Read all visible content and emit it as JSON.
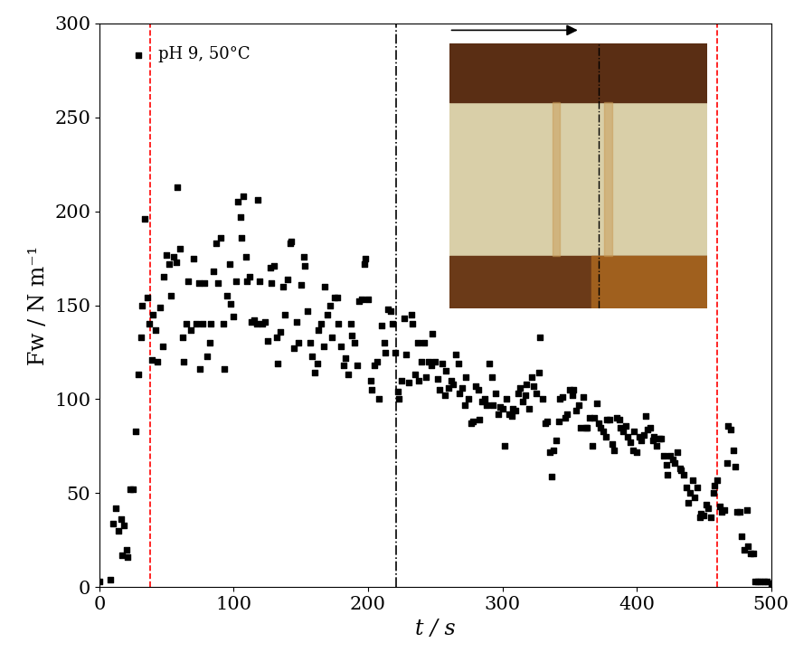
{
  "chart_data": {
    "type": "scatter",
    "x_label": "t / s",
    "y_label": "Fw / N m⁻¹",
    "xlim": [
      0,
      500
    ],
    "xticks": [
      0,
      100,
      200,
      300,
      400,
      500
    ],
    "ylim": [
      0,
      300
    ],
    "yticks": [
      0,
      50,
      100,
      150,
      200,
      250,
      300
    ],
    "legend": "upper left",
    "vlines": [
      {
        "x": 38,
        "color": "#ff0000",
        "line_style": "dashed"
      },
      {
        "x": 221,
        "color": "#000000",
        "line_style": "dashdot"
      },
      {
        "x": 460,
        "color": "#ff0000",
        "line_style": "dashed"
      }
    ],
    "series": [
      {
        "name": "pH 9, 50°C",
        "color": "#000000",
        "marker": "square",
        "x": [
          0,
          8,
          10,
          12,
          14,
          16,
          17,
          18,
          20,
          21,
          23,
          25,
          27,
          29,
          31,
          32,
          34,
          36,
          37,
          39,
          40,
          42,
          43,
          45,
          47,
          48,
          50,
          52,
          53,
          55,
          57,
          58,
          60,
          62,
          63,
          65,
          66,
          68,
          70,
          72,
          74,
          75,
          77,
          78,
          80,
          82,
          83,
          85,
          87,
          88,
          90,
          92,
          93,
          95,
          97,
          98,
          100,
          102,
          103,
          105,
          106,
          107,
          109,
          110,
          112,
          113,
          115,
          117,
          118,
          119,
          121,
          123,
          125,
          127,
          128,
          130,
          132,
          133,
          135,
          137,
          138,
          140,
          142,
          143,
          145,
          147,
          148,
          150,
          152,
          153,
          155,
          157,
          158,
          160,
          162,
          163,
          165,
          167,
          168,
          170,
          172,
          173,
          175,
          177,
          178,
          180,
          182,
          183,
          185,
          187,
          188,
          190,
          192,
          193,
          195,
          197,
          198,
          200,
          202,
          203,
          205,
          207,
          208,
          210,
          212,
          213,
          215,
          217,
          218,
          220,
          222,
          223,
          225,
          227,
          228,
          230,
          232,
          233,
          235,
          237,
          238,
          240,
          242,
          243,
          245,
          247,
          248,
          250,
          252,
          253,
          255,
          257,
          258,
          260,
          262,
          263,
          265,
          267,
          268,
          270,
          272,
          273,
          275,
          277,
          278,
          280,
          282,
          283,
          285,
          287,
          288,
          290,
          292,
          293,
          295,
          297,
          298,
          300,
          302,
          303,
          305,
          307,
          308,
          310,
          312,
          313,
          315,
          317,
          318,
          320,
          322,
          323,
          325,
          327,
          328,
          330,
          332,
          333,
          335,
          337,
          338,
          340,
          342,
          343,
          345,
          347,
          348,
          350,
          352,
          353,
          355,
          357,
          358,
          360,
          362,
          363,
          365,
          367,
          368,
          370,
          372,
          373,
          375,
          377,
          378,
          380,
          382,
          383,
          385,
          387,
          388,
          390,
          392,
          393,
          395,
          397,
          398,
          400,
          402,
          403,
          405,
          407,
          408,
          410,
          412,
          413,
          415,
          417,
          418,
          420,
          422,
          423,
          425,
          427,
          428,
          430,
          432,
          433,
          435,
          437,
          438,
          440,
          442,
          443,
          445,
          447,
          448,
          450,
          452,
          453,
          455,
          457,
          458,
          460,
          462,
          463,
          465,
          467,
          468,
          470,
          472,
          473,
          475,
          477,
          478,
          480,
          482,
          483,
          485,
          487,
          488,
          490,
          492,
          495,
          497,
          500
        ],
        "values": [
          3,
          4,
          34,
          42,
          30,
          36,
          17,
          33,
          20,
          16,
          52,
          52,
          83,
          113,
          133,
          150,
          196,
          154,
          140,
          121,
          145,
          137,
          120,
          149,
          128,
          165,
          177,
          172,
          155,
          176,
          173,
          213,
          180,
          133,
          120,
          140,
          163,
          137,
          175,
          140,
          162,
          116,
          140,
          162,
          123,
          130,
          140,
          168,
          183,
          162,
          186,
          140,
          116,
          155,
          172,
          151,
          144,
          163,
          205,
          197,
          186,
          208,
          176,
          163,
          165,
          141,
          142,
          140,
          206,
          163,
          140,
          141,
          131,
          170,
          162,
          171,
          133,
          119,
          136,
          160,
          145,
          164,
          183,
          184,
          127,
          141,
          130,
          161,
          176,
          171,
          147,
          130,
          123,
          114,
          119,
          137,
          140,
          128,
          160,
          145,
          150,
          133,
          154,
          154,
          140,
          128,
          118,
          122,
          113,
          140,
          134,
          130,
          118,
          152,
          153,
          172,
          175,
          153,
          110,
          105,
          118,
          120,
          100,
          139,
          130,
          125,
          148,
          147,
          140,
          125,
          104,
          100,
          110,
          143,
          124,
          109,
          145,
          140,
          113,
          130,
          110,
          120,
          130,
          112,
          120,
          118,
          135,
          120,
          111,
          105,
          119,
          102,
          115,
          106,
          110,
          108,
          124,
          119,
          103,
          106,
          97,
          112,
          100,
          87,
          88,
          107,
          105,
          89,
          99,
          100,
          97,
          119,
          112,
          97,
          103,
          92,
          96,
          95,
          75,
          100,
          92,
          91,
          95,
          94,
          103,
          106,
          99,
          102,
          108,
          95,
          112,
          107,
          103,
          114,
          133,
          100,
          87,
          88,
          72,
          59,
          73,
          78,
          88,
          100,
          101,
          90,
          92,
          105,
          102,
          105,
          94,
          97,
          85,
          101,
          85,
          85,
          90,
          75,
          90,
          98,
          87,
          85,
          83,
          80,
          89,
          89,
          76,
          73,
          90,
          89,
          85,
          83,
          86,
          80,
          77,
          73,
          83,
          72,
          80,
          78,
          81,
          91,
          84,
          85,
          78,
          80,
          75,
          79,
          79,
          70,
          65,
          60,
          70,
          68,
          66,
          72,
          63,
          62,
          60,
          53,
          45,
          50,
          57,
          48,
          53,
          37,
          39,
          38,
          44,
          42,
          37,
          50,
          54,
          57,
          43,
          40,
          41,
          66,
          86,
          84,
          73,
          64,
          40,
          40,
          27,
          20,
          41,
          22,
          18,
          18,
          3,
          3,
          3,
          3,
          3,
          2
        ]
      }
    ]
  }
}
